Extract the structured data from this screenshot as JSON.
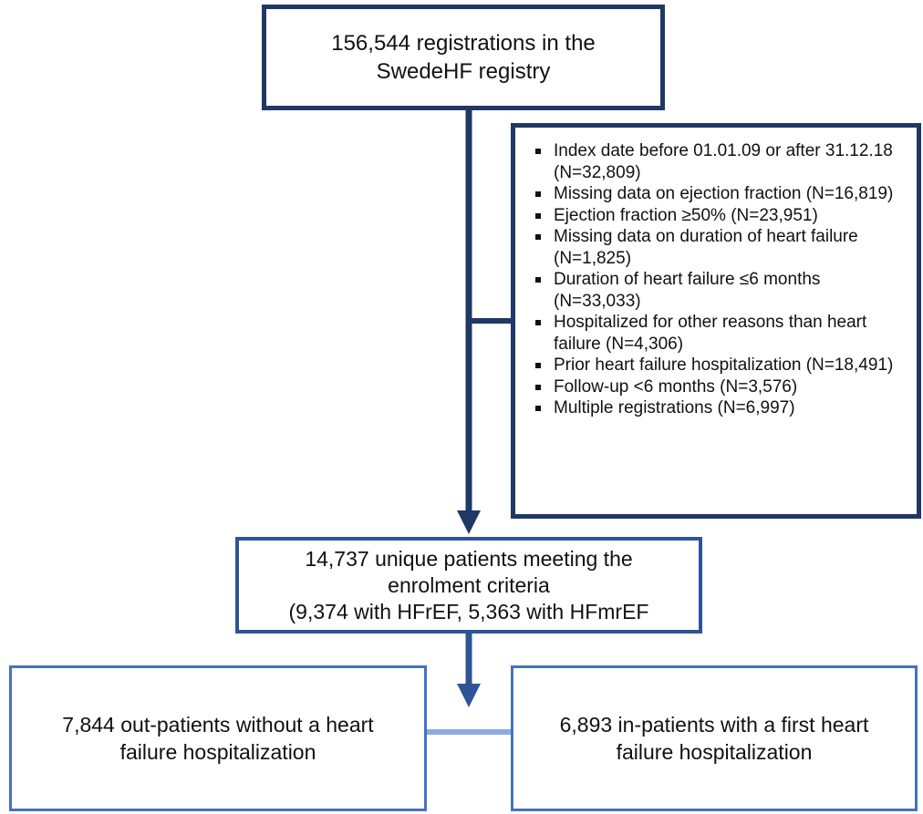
{
  "nodes": [
    {
      "label": "156,544 registrations in the SwedeHF registry"
    },
    {
      "label": "14,737 unique patients meeting the enrolment criteria",
      "detail": "(9,374 with HFrEF, 5,363 with HFmrEF"
    },
    {
      "label": "7,844 out-patients without a heart failure hospitalization"
    },
    {
      "label": "6,893 in-patients with a first heart failure hospitalization"
    }
  ],
  "exclusions": [
    "Index date before 01.01.09 or after 31.12.18 (N=32,809)",
    "Missing data on ejection fraction (N=16,819)",
    "Ejection fraction ≥50% (N=23,951)",
    "Missing data on duration of heart failure (N=1,825)",
    "Duration of heart failure ≤6 months (N=33,033)",
    "Hospitalized for other reasons than heart failure (N=4,306)",
    "Prior heart failure hospitalization (N=18,491)",
    "Follow-up <6 months (N=3,576)",
    "Multiple registrations (N=6,997)"
  ]
}
